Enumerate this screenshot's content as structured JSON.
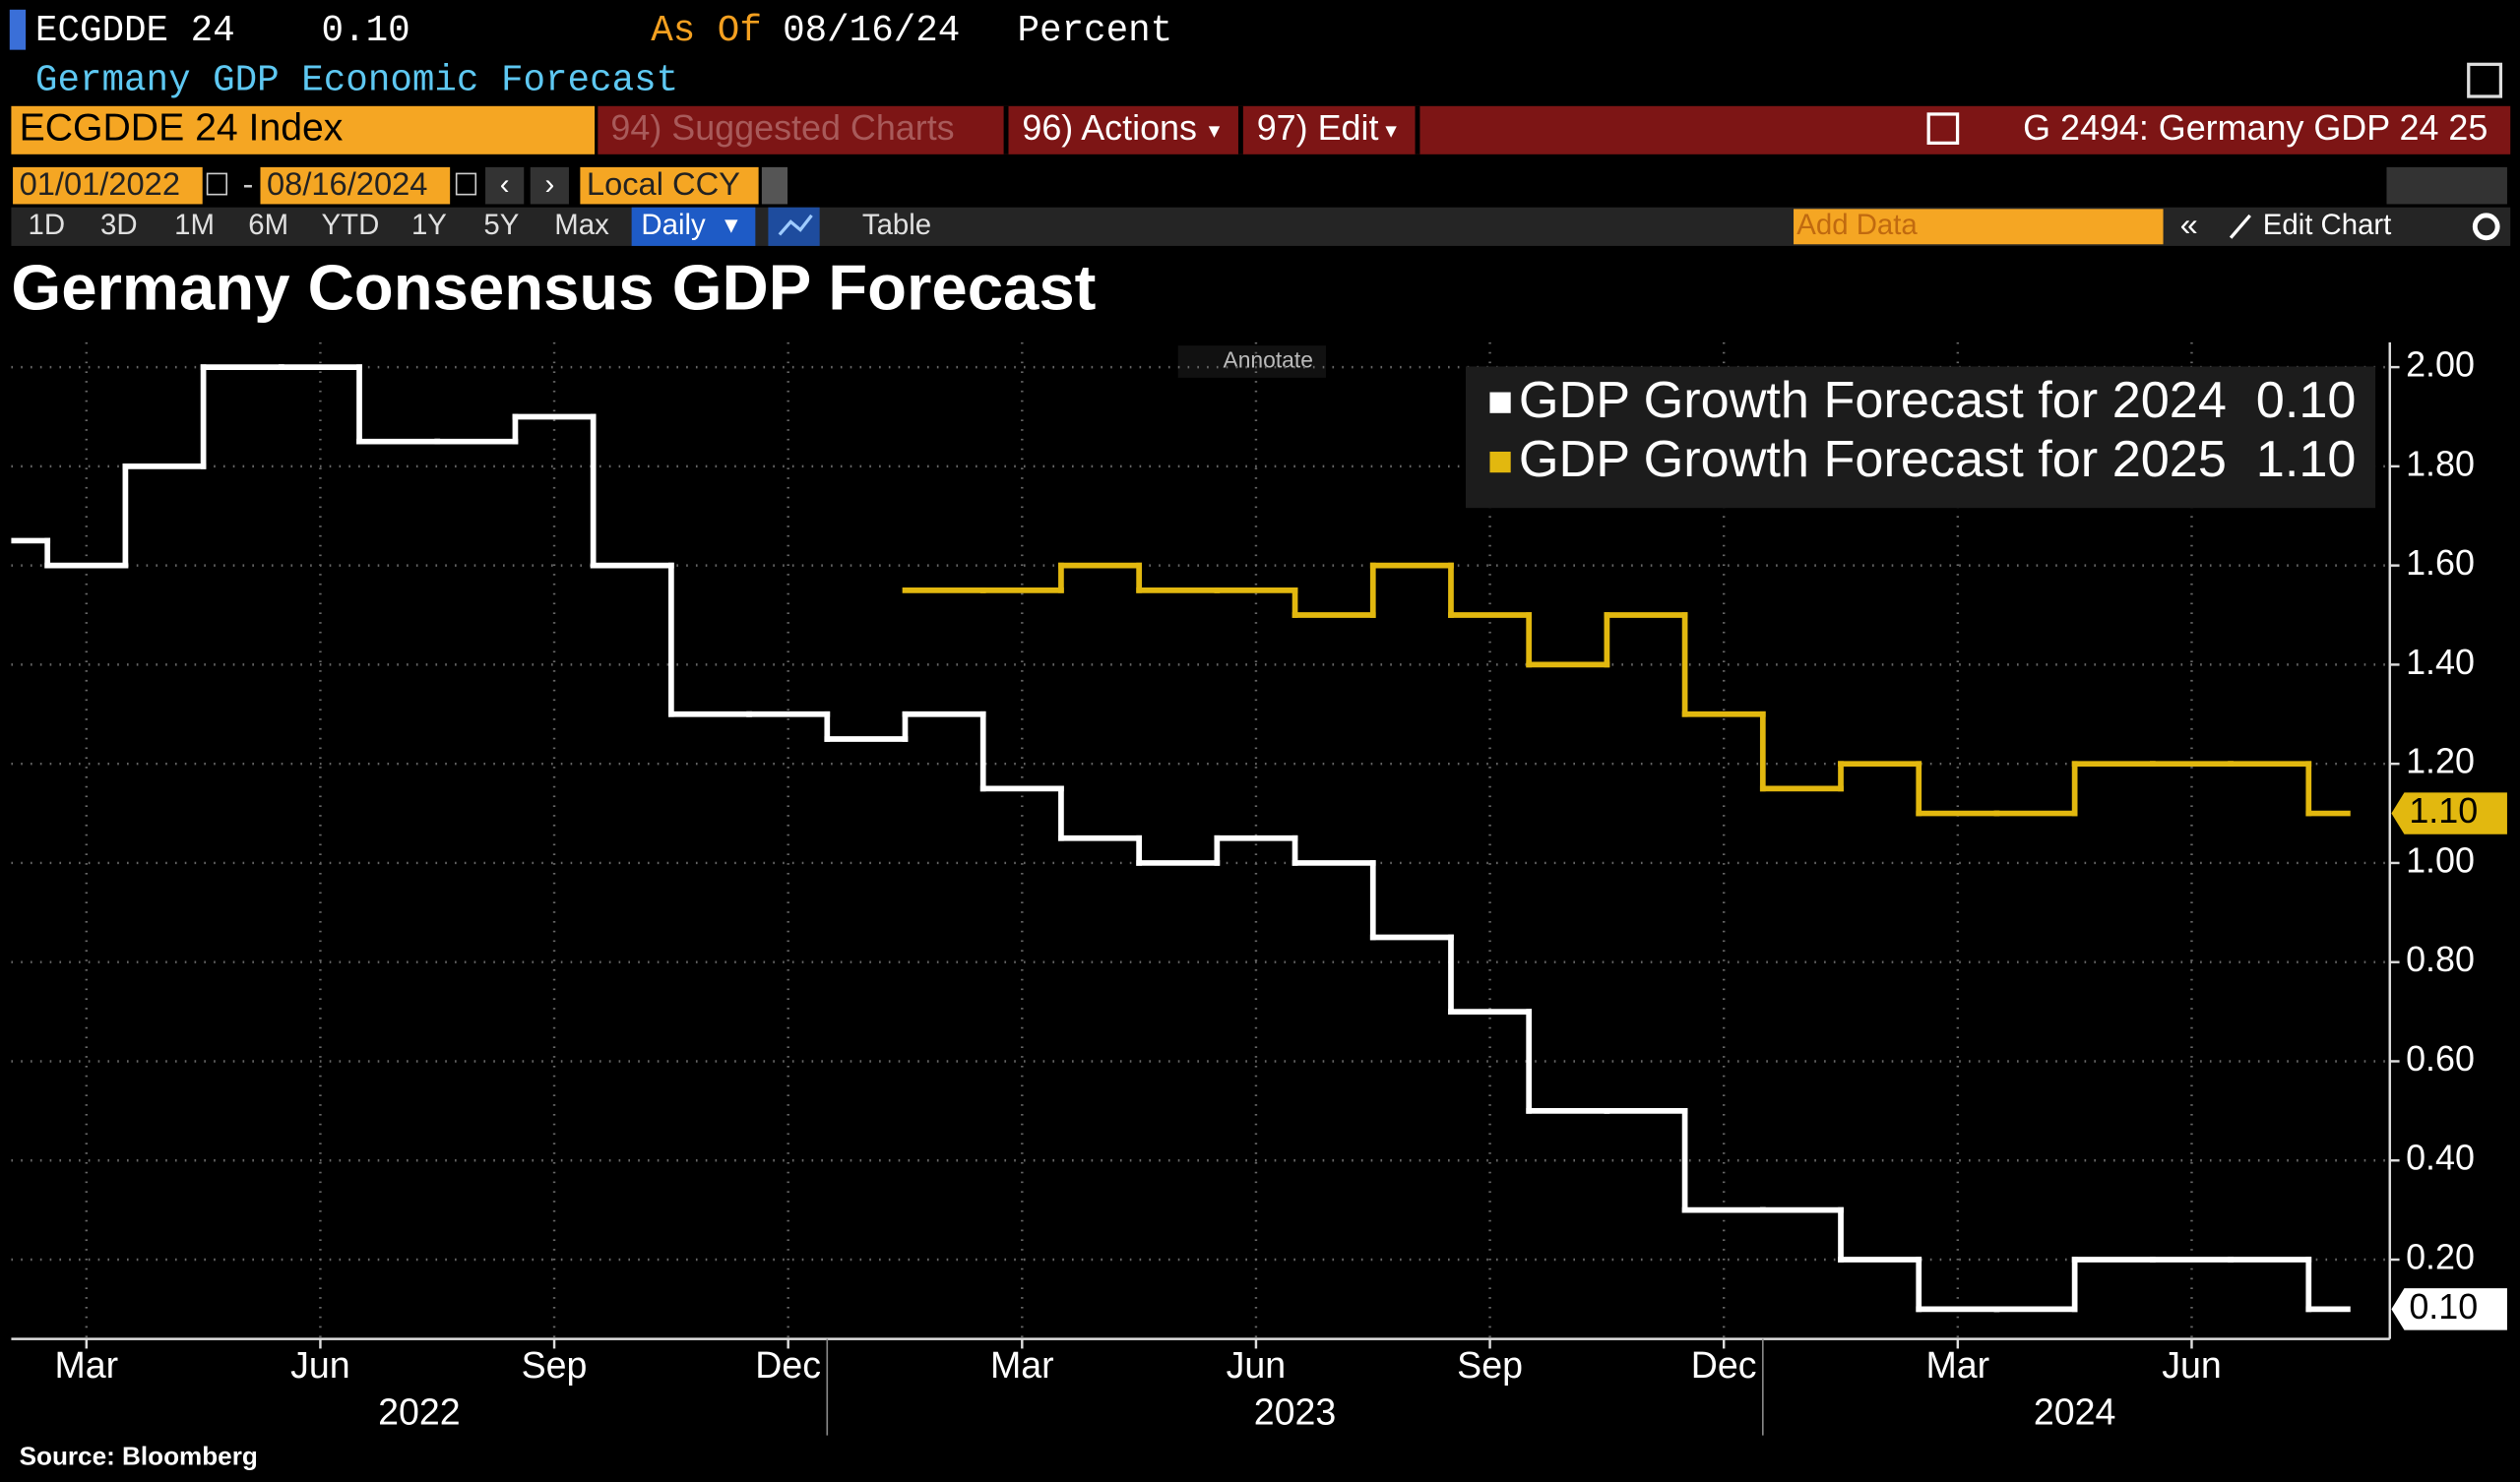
{
  "header": {
    "ticker": "ECGDDE 24",
    "value": "0.10",
    "as_of_label": "As Of",
    "as_of_date": "08/16/24",
    "units": "Percent",
    "description": "Germany GDP Economic Forecast"
  },
  "toolbar": {
    "security": "ECGDDE 24 Index",
    "suggested": "94) Suggested Charts",
    "actions": "96) Actions",
    "edit": "97) Edit",
    "chart_id": "G 2494: Germany GDP 24 25",
    "start_date": "01/01/2022",
    "end_date": "08/16/2024",
    "currency": "Local CCY",
    "periods": [
      "1D",
      "3D",
      "1M",
      "6M",
      "YTD",
      "1Y",
      "5Y",
      "Max"
    ],
    "frequency": "Daily",
    "table": "Table",
    "add_data": "Add Data",
    "edit_chart": "Edit Chart"
  },
  "annotate": "Annotate",
  "chart_data": {
    "type": "line",
    "step": true,
    "title": "Germany Consensus GDP Forecast",
    "source": "Source: Bloomberg",
    "x": [
      "2022-02",
      "2022-03",
      "2022-04",
      "2022-05",
      "2022-06",
      "2022-07",
      "2022-08",
      "2022-09",
      "2022-10",
      "2022-11",
      "2022-12",
      "2023-01",
      "2023-02",
      "2023-03",
      "2023-04",
      "2023-05",
      "2023-06",
      "2023-07",
      "2023-08",
      "2023-09",
      "2023-10",
      "2023-11",
      "2023-12",
      "2024-01",
      "2024-02",
      "2024-03",
      "2024-04",
      "2024-05",
      "2024-06",
      "2024-07",
      "2024-08"
    ],
    "series": [
      {
        "name": "GDP Growth Forecast for 2024",
        "color": "#ffffff",
        "values": [
          1.65,
          1.6,
          1.8,
          2.0,
          2.0,
          1.85,
          1.85,
          1.9,
          1.6,
          1.3,
          1.3,
          1.25,
          1.3,
          1.15,
          1.05,
          1.0,
          1.05,
          1.0,
          0.85,
          0.7,
          0.5,
          0.5,
          0.3,
          0.3,
          0.2,
          0.1,
          0.1,
          0.2,
          0.2,
          0.2,
          0.1
        ],
        "value_labels": [
          null,
          null,
          null,
          null,
          null,
          null,
          null,
          null,
          null,
          null,
          null,
          null,
          null,
          null,
          null,
          null,
          null,
          null,
          null,
          null,
          null,
          null,
          null,
          null,
          null,
          null,
          null,
          null,
          null,
          null,
          "0.10"
        ]
      },
      {
        "name": "GDP Growth Forecast for 2025",
        "color": "#e2b80f",
        "values": [
          null,
          null,
          null,
          null,
          null,
          null,
          null,
          null,
          null,
          null,
          null,
          null,
          1.55,
          1.55,
          1.6,
          1.55,
          1.55,
          1.5,
          1.6,
          1.5,
          1.4,
          1.5,
          1.3,
          1.15,
          1.2,
          1.1,
          1.1,
          1.2,
          1.2,
          1.2,
          1.1
        ],
        "value_labels": [
          null,
          null,
          null,
          null,
          null,
          null,
          null,
          null,
          null,
          null,
          null,
          null,
          null,
          null,
          null,
          null,
          null,
          null,
          null,
          null,
          null,
          null,
          null,
          null,
          null,
          null,
          null,
          null,
          null,
          null,
          "1.10"
        ]
      }
    ],
    "xlim": [
      "2022-02",
      "2024-09"
    ],
    "xticks": [
      {
        "value": "2022-03",
        "label": "Mar"
      },
      {
        "value": "2022-06",
        "label": "Jun"
      },
      {
        "value": "2022-09",
        "label": "Sep"
      },
      {
        "value": "2022-12",
        "label": "Dec"
      },
      {
        "value": "2023-03",
        "label": "Mar"
      },
      {
        "value": "2023-06",
        "label": "Jun"
      },
      {
        "value": "2023-09",
        "label": "Sep"
      },
      {
        "value": "2023-12",
        "label": "Dec"
      },
      {
        "value": "2024-03",
        "label": "Mar"
      },
      {
        "value": "2024-06",
        "label": "Jun"
      }
    ],
    "year_labels": [
      "2022",
      "2023",
      "2024"
    ],
    "ylim": [
      0.04,
      2.05
    ],
    "yticks": [
      {
        "value": 0.2,
        "label": "0.20"
      },
      {
        "value": 0.4,
        "label": "0.40"
      },
      {
        "value": 0.6,
        "label": "0.60"
      },
      {
        "value": 0.8,
        "label": "0.80"
      },
      {
        "value": 1.0,
        "label": "1.00"
      },
      {
        "value": 1.2,
        "label": "1.20"
      },
      {
        "value": 1.4,
        "label": "1.40"
      },
      {
        "value": 1.6,
        "label": "1.60"
      },
      {
        "value": 1.8,
        "label": "1.80"
      },
      {
        "value": 2.0,
        "label": "2.00"
      }
    ],
    "grid": true,
    "legend": "top-right",
    "y_axis_side": "right"
  }
}
